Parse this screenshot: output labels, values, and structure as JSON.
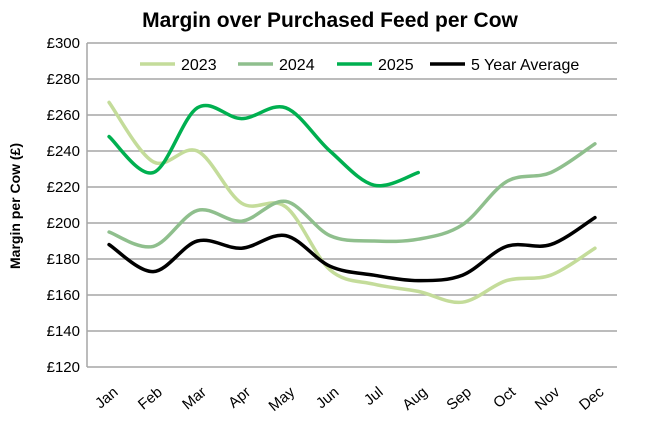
{
  "chart_data": {
    "type": "line",
    "title": "Margin over Purchased Feed per Cow",
    "xlabel": "",
    "ylabel": "Margin per Cow (£)",
    "categories": [
      "Jan",
      "Feb",
      "Mar",
      "Apr",
      "May",
      "Jun",
      "Jul",
      "Aug",
      "Sep",
      "Oct",
      "Nov",
      "Dec"
    ],
    "ylim": [
      120,
      300
    ],
    "yticks": [
      120,
      140,
      160,
      180,
      200,
      220,
      240,
      260,
      280,
      300
    ],
    "ytick_labels": [
      "£120",
      "£140",
      "£160",
      "£180",
      "£200",
      "£220",
      "£240",
      "£260",
      "£280",
      "£300"
    ],
    "grid": true,
    "legend_position": "top",
    "smooth": true,
    "series": [
      {
        "name": "2023",
        "color": "#c4dc9a",
        "values": [
          267,
          234,
          240,
          211,
          209,
          174,
          166,
          162,
          156,
          168,
          171,
          186
        ]
      },
      {
        "name": "2024",
        "color": "#8fbf8d",
        "values": [
          195,
          187,
          207,
          201,
          212,
          193,
          190,
          191,
          199,
          223,
          228,
          244
        ]
      },
      {
        "name": "2025",
        "color": "#00b050",
        "values": [
          248,
          228,
          264,
          258,
          264,
          240,
          221,
          228,
          null,
          null,
          null,
          null
        ]
      },
      {
        "name": "5 Year Average",
        "color": "#000000",
        "values": [
          188,
          173,
          190,
          186,
          193,
          176,
          171,
          168,
          171,
          187,
          188,
          203
        ]
      }
    ]
  }
}
